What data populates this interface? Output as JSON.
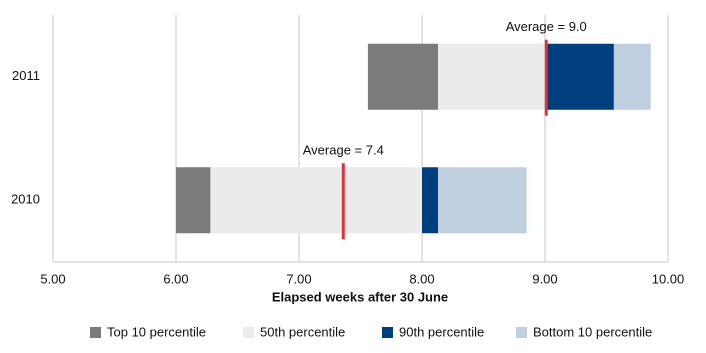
{
  "chart_data": {
    "type": "floating-stacked-bar",
    "xlabel": "Elapsed weeks after 30 June",
    "categories": [
      "2011",
      "2010"
    ],
    "series": [
      {
        "name": "Top 10 percentile",
        "color": "#7a7c79",
        "values": [
          [
            7.56,
            8.13
          ],
          [
            6.0,
            6.28
          ]
        ]
      },
      {
        "name": "50th percentile",
        "color": "#ebebeb",
        "values": [
          [
            8.13,
            9.02
          ],
          [
            6.28,
            8.0
          ]
        ]
      },
      {
        "name": "90th percentile",
        "color": "#003f7d",
        "values": [
          [
            9.02,
            9.56
          ],
          [
            8.0,
            8.13
          ]
        ]
      },
      {
        "name": "Bottom 10 percentile",
        "color": "#c0cfdf",
        "values": [
          [
            9.56,
            9.86
          ],
          [
            8.13,
            8.85
          ]
        ]
      }
    ],
    "annotations": [
      {
        "label": "Average = 9.0",
        "value": 9.01,
        "category": 0,
        "color": "#d9343d"
      },
      {
        "label": "Average = 7.4",
        "value": 7.36,
        "category": 1,
        "color": "#d9343d"
      }
    ],
    "xlim": [
      5,
      10
    ],
    "xticks": [
      {
        "value": 5,
        "label": "5.00"
      },
      {
        "value": 6,
        "label": "6.00"
      },
      {
        "value": 7,
        "label": "7.00"
      },
      {
        "value": 8,
        "label": "8.00"
      },
      {
        "value": 9,
        "label": "9.00"
      },
      {
        "value": 10,
        "label": "10.00"
      }
    ],
    "grid": true,
    "legend": "bottom"
  }
}
